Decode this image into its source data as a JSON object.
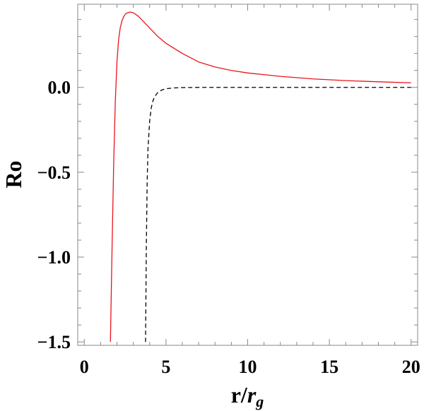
{
  "chart_data": {
    "type": "line",
    "xlabel_main": "r/",
    "xlabel_italic": "r",
    "xlabel_sub": "g",
    "ylabel": "Ro",
    "xlim": [
      -0.4,
      20.4
    ],
    "ylim": [
      -1.52,
      0.49
    ],
    "xticks": [
      0,
      5,
      10,
      15,
      20
    ],
    "yticks": [
      0.0,
      -0.5,
      -1.0,
      -1.5
    ],
    "ytick_labels": [
      "0.0",
      "−0.5",
      "−1.0",
      "−1.5"
    ],
    "grid": false,
    "series": [
      {
        "color": "#e8151b",
        "dash": "solid",
        "x": [
          1.6,
          1.7,
          1.8,
          1.9,
          2.0,
          2.1,
          2.2,
          2.3,
          2.4,
          2.5,
          2.6,
          2.8,
          3.0,
          3.3,
          3.6,
          4.0,
          4.5,
          5.0,
          6.0,
          7.0,
          8.0,
          9.0,
          10.0,
          12.0,
          14.0,
          16.0,
          18.0,
          20.0
        ],
        "y": [
          -1.5,
          -0.95,
          -0.45,
          -0.08,
          0.15,
          0.28,
          0.35,
          0.39,
          0.415,
          0.43,
          0.438,
          0.444,
          0.44,
          0.42,
          0.39,
          0.35,
          0.3,
          0.26,
          0.2,
          0.15,
          0.12,
          0.1,
          0.085,
          0.065,
          0.05,
          0.04,
          0.033,
          0.027
        ]
      },
      {
        "color": "#000000",
        "dash": "dashed",
        "x": [
          3.75,
          3.8,
          3.85,
          3.9,
          4.0,
          4.1,
          4.2,
          4.3,
          4.5,
          4.75,
          5.0,
          5.5,
          6.0,
          7.0,
          8.0,
          10.0,
          12.0,
          15.0,
          20.0
        ],
        "y": [
          -1.5,
          -0.92,
          -0.55,
          -0.36,
          -0.2,
          -0.12,
          -0.08,
          -0.055,
          -0.03,
          -0.015,
          -0.008,
          -0.003,
          -0.001,
          0.0,
          0.0,
          0.0,
          0.0,
          0.0,
          0.0
        ]
      }
    ]
  }
}
